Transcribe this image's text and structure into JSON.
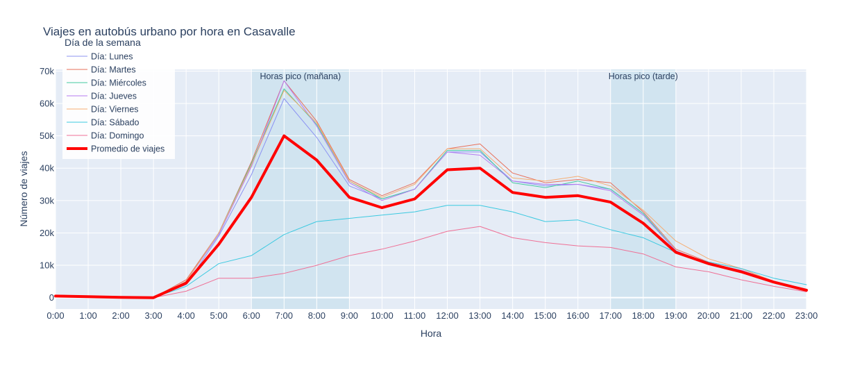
{
  "chart_data": {
    "type": "line",
    "title": "Viajes en autobús urbano por hora en Casavalle",
    "xlabel": "Hora",
    "ylabel": "Número de viajes",
    "legend_title": "Día de la semana",
    "legend_position": "top-left",
    "grid": true,
    "ylim": [
      -3500,
      70500
    ],
    "y_ticks": [
      0,
      10000,
      20000,
      30000,
      40000,
      50000,
      60000,
      70000
    ],
    "y_tick_labels": [
      "0",
      "10k",
      "20k",
      "30k",
      "40k",
      "50k",
      "60k",
      "70k"
    ],
    "categories": [
      "0:00",
      "1:00",
      "2:00",
      "3:00",
      "4:00",
      "5:00",
      "6:00",
      "7:00",
      "8:00",
      "9:00",
      "10:00",
      "11:00",
      "12:00",
      "13:00",
      "14:00",
      "15:00",
      "16:00",
      "17:00",
      "18:00",
      "19:00",
      "20:00",
      "21:00",
      "22:00",
      "23:00"
    ],
    "shaded_regions": [
      {
        "label": "Horas pico (mañana)",
        "from": "6:00",
        "to": "9:00"
      },
      {
        "label": "Horas pico (tarde)",
        "from": "17:00",
        "to": "19:00"
      }
    ],
    "series": [
      {
        "name": "Día: Lunes",
        "color": "#8c93f2",
        "width": 1,
        "values": [
          500,
          300,
          100,
          0,
          4000,
          19000,
          38000,
          61500,
          49500,
          34500,
          30500,
          33500,
          45000,
          45000,
          36000,
          34500,
          35000,
          33500,
          26000,
          14500,
          10500,
          8500,
          5000,
          2300
        ]
      },
      {
        "name": "Día: Martes",
        "color": "#e8705a",
        "width": 1,
        "values": [
          500,
          300,
          100,
          0,
          5500,
          20000,
          42000,
          67000,
          54500,
          36500,
          31500,
          35500,
          46000,
          47500,
          38500,
          35500,
          36500,
          35500,
          26500,
          15000,
          11000,
          9000,
          5000,
          2500
        ]
      },
      {
        "name": "Día: Miércoles",
        "color": "#44c9a0",
        "width": 1,
        "values": [
          500,
          300,
          100,
          0,
          5000,
          20000,
          41500,
          64500,
          53500,
          36000,
          30500,
          33500,
          45500,
          45500,
          35500,
          34000,
          36000,
          33500,
          26000,
          14500,
          10500,
          8500,
          5000,
          2300
        ]
      },
      {
        "name": "Día: Jueves",
        "color": "#b57cf0",
        "width": 1,
        "values": [
          500,
          300,
          100,
          0,
          5000,
          19500,
          40500,
          67000,
          53000,
          35500,
          30000,
          33500,
          45000,
          44000,
          36000,
          35000,
          35000,
          33000,
          25500,
          14500,
          10500,
          8500,
          5000,
          2300
        ]
      },
      {
        "name": "Día: Viernes",
        "color": "#f6ad72",
        "width": 1,
        "values": [
          500,
          300,
          100,
          0,
          5000,
          20000,
          41000,
          64000,
          54000,
          36000,
          31000,
          35000,
          46000,
          46000,
          37000,
          36000,
          37500,
          34500,
          27000,
          17500,
          12000,
          9000,
          5000,
          2300
        ]
      },
      {
        "name": "Día: Sábado",
        "color": "#3bc9e0",
        "width": 1,
        "values": [
          800,
          500,
          200,
          0,
          3500,
          10500,
          13000,
          19500,
          23500,
          24500,
          25500,
          26500,
          28500,
          28500,
          26500,
          23500,
          24000,
          21000,
          18500,
          14000,
          11000,
          9000,
          6000,
          4000
        ]
      },
      {
        "name": "Día: Domingo",
        "color": "#ef6f95",
        "width": 1,
        "values": [
          800,
          500,
          200,
          0,
          2000,
          6000,
          6000,
          7500,
          10000,
          13000,
          15000,
          17500,
          20500,
          22000,
          18500,
          17000,
          16000,
          15500,
          13500,
          9500,
          8000,
          5500,
          3500,
          1800
        ]
      },
      {
        "name": "Promedio de viajes",
        "color": "#ff0000",
        "width": 4,
        "values": [
          500,
          300,
          100,
          0,
          4500,
          16500,
          31000,
          50000,
          42500,
          31000,
          27800,
          30500,
          39500,
          40000,
          32500,
          31000,
          31500,
          29500,
          23000,
          14000,
          10500,
          8000,
          4800,
          2300
        ]
      }
    ]
  }
}
